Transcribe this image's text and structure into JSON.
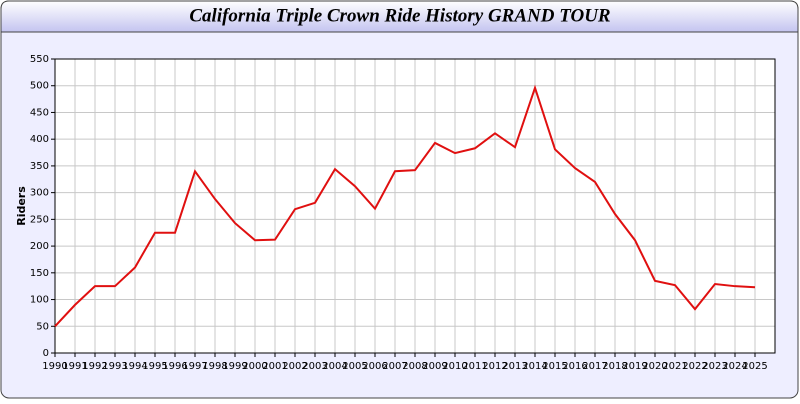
{
  "chart_data": {
    "type": "line",
    "title": "California Triple Crown Ride History GRAND TOUR",
    "y_label": "Riders",
    "x": [
      1990,
      1991,
      1992,
      1993,
      1994,
      1995,
      1996,
      1997,
      1998,
      1999,
      2000,
      2001,
      2002,
      2003,
      2004,
      2005,
      2006,
      2007,
      2008,
      2009,
      2010,
      2011,
      2012,
      2013,
      2014,
      2015,
      2016,
      2017,
      2018,
      2019,
      2020,
      2021,
      2022,
      2023,
      2024,
      2025
    ],
    "series": [
      {
        "name": "Riders",
        "color": "#e01010",
        "values": [
          50,
          90,
          125,
          125,
          160,
          225,
          225,
          340,
          288,
          243,
          211,
          212,
          269,
          281,
          344,
          312,
          270,
          340,
          342,
          393,
          374,
          383,
          411,
          385,
          496,
          381,
          346,
          320,
          260,
          211,
          135,
          127,
          82,
          129,
          125,
          123
        ]
      }
    ],
    "xlim": [
      1990,
      2026
    ],
    "xticks": [
      1990,
      1991,
      1992,
      1993,
      1994,
      1995,
      1996,
      1997,
      1998,
      1999,
      2000,
      2001,
      2002,
      2003,
      2004,
      2005,
      2006,
      2007,
      2008,
      2009,
      2010,
      2011,
      2012,
      2013,
      2014,
      2015,
      2016,
      2017,
      2018,
      2019,
      2020,
      2021,
      2022,
      2023,
      2024,
      2025
    ],
    "ylim": [
      0,
      550
    ],
    "yticks": [
      0,
      50,
      100,
      150,
      200,
      250,
      300,
      350,
      400,
      450,
      500,
      550
    ],
    "grid": true
  }
}
